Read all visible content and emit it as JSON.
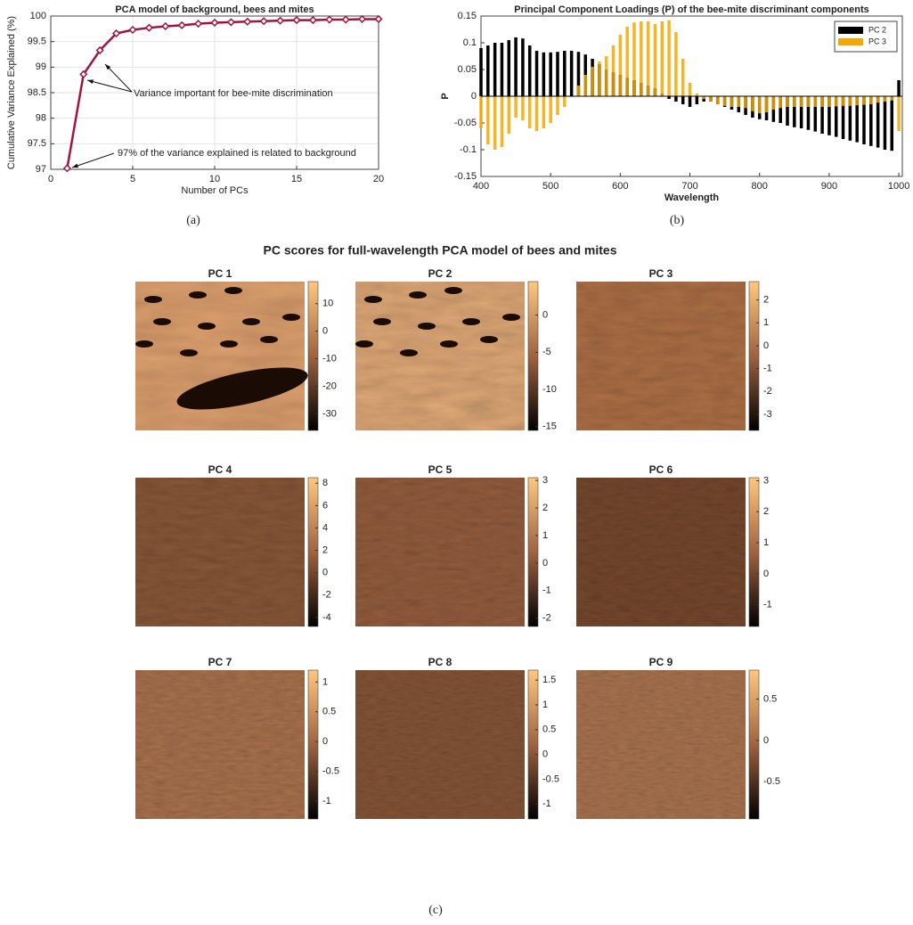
{
  "chart_data": [
    {
      "type": "line",
      "title": "PCA model of background, bees and mites",
      "x_label": "Number of PCs",
      "y_label": "Cumulative Variance Explained (%)",
      "x": [
        1,
        2,
        3,
        4,
        5,
        6,
        7,
        8,
        9,
        10,
        11,
        12,
        13,
        14,
        15,
        16,
        17,
        18,
        19,
        20
      ],
      "values": [
        97.02,
        98.86,
        99.33,
        99.66,
        99.73,
        99.77,
        99.8,
        99.82,
        99.85,
        99.87,
        99.88,
        99.89,
        99.9,
        99.91,
        99.92,
        99.92,
        99.93,
        99.93,
        99.94,
        99.94
      ],
      "color": "#a0153e",
      "xlim": [
        0,
        20
      ],
      "xticks": [
        0,
        5,
        10,
        15,
        20
      ],
      "ylim": [
        97,
        100
      ],
      "yticks": [
        97,
        97.5,
        98,
        98.5,
        99,
        99.5,
        100
      ],
      "grid": true,
      "annotations": [
        "Variance important for bee-mite discrimination",
        "97% of the variance explained is related to background"
      ]
    },
    {
      "type": "bar",
      "title": "Principal Component Loadings (P) of the bee-mite discriminant components",
      "x_label": "Wavelength",
      "y_label": "P",
      "x": [
        400,
        410,
        420,
        430,
        440,
        450,
        460,
        470,
        480,
        490,
        500,
        510,
        520,
        530,
        540,
        550,
        560,
        570,
        580,
        590,
        600,
        610,
        620,
        630,
        640,
        650,
        660,
        670,
        680,
        690,
        700,
        710,
        720,
        730,
        740,
        750,
        760,
        770,
        780,
        790,
        800,
        810,
        820,
        830,
        840,
        850,
        860,
        870,
        880,
        890,
        900,
        910,
        920,
        930,
        940,
        950,
        960,
        970,
        980,
        990,
        1000
      ],
      "series": [
        {
          "name": "PC 2",
          "color": "#000000",
          "values": [
            0.09,
            0.095,
            0.1,
            0.1,
            0.105,
            0.11,
            0.108,
            0.095,
            0.085,
            0.082,
            0.082,
            0.083,
            0.085,
            0.085,
            0.083,
            0.078,
            0.07,
            0.06,
            0.05,
            0.045,
            0.04,
            0.035,
            0.03,
            0.025,
            0.02,
            0.015,
            0.005,
            -0.005,
            -0.01,
            -0.015,
            -0.02,
            -0.015,
            -0.01,
            -0.01,
            -0.015,
            -0.02,
            -0.025,
            -0.03,
            -0.035,
            -0.04,
            -0.043,
            -0.045,
            -0.048,
            -0.05,
            -0.055,
            -0.058,
            -0.06,
            -0.063,
            -0.066,
            -0.07,
            -0.073,
            -0.076,
            -0.08,
            -0.083,
            -0.086,
            -0.09,
            -0.093,
            -0.096,
            -0.1,
            -0.102,
            0.03
          ]
        },
        {
          "name": "PC 3",
          "color": "#f5a800",
          "values": [
            -0.06,
            -0.09,
            -0.1,
            -0.095,
            -0.07,
            -0.04,
            -0.045,
            -0.06,
            -0.065,
            -0.06,
            -0.05,
            -0.035,
            -0.02,
            0,
            0.02,
            0.04,
            0.055,
            0.065,
            0.075,
            0.095,
            0.115,
            0.13,
            0.138,
            0.14,
            0.14,
            0.135,
            0.14,
            0.142,
            0.12,
            0.07,
            0.025,
            0.005,
            -0.005,
            -0.01,
            -0.015,
            -0.018,
            -0.02,
            -0.02,
            -0.022,
            -0.028,
            -0.032,
            -0.03,
            -0.025,
            -0.022,
            -0.02,
            -0.02,
            -0.02,
            -0.02,
            -0.02,
            -0.02,
            -0.02,
            -0.019,
            -0.018,
            -0.018,
            -0.017,
            -0.016,
            -0.015,
            -0.012,
            -0.01,
            -0.008,
            -0.065
          ]
        }
      ],
      "xlim": [
        400,
        1005
      ],
      "xticks": [
        400,
        500,
        600,
        700,
        800,
        900,
        1000
      ],
      "ylim": [
        -0.15,
        0.15
      ],
      "yticks": [
        -0.15,
        -0.1,
        -0.05,
        0,
        0.05,
        0.1,
        0.15
      ],
      "grid": false,
      "legend": "top-right"
    },
    {
      "type": "image",
      "title": "PC 1",
      "clim": [
        -36,
        18
      ],
      "cticks": [
        -30,
        -20,
        -10,
        0,
        10
      ]
    },
    {
      "type": "image",
      "title": "PC 2",
      "clim": [
        -15.5,
        4.5
      ],
      "cticks": [
        -15,
        -10,
        -5,
        0
      ]
    },
    {
      "type": "image",
      "title": "PC 3",
      "clim": [
        -3.7,
        2.8
      ],
      "cticks": [
        -3,
        -2,
        -1,
        0,
        1,
        2
      ]
    },
    {
      "type": "image",
      "title": "PC 4",
      "clim": [
        -4.8,
        8.5
      ],
      "cticks": [
        -4,
        -2,
        0,
        2,
        4,
        6,
        8
      ]
    },
    {
      "type": "image",
      "title": "PC 5",
      "clim": [
        -2.3,
        3.1
      ],
      "cticks": [
        -2,
        -1,
        0,
        1,
        2,
        3
      ]
    },
    {
      "type": "image",
      "title": "PC 6",
      "clim": [
        -1.7,
        3.1
      ],
      "cticks": [
        -1,
        0,
        1,
        2,
        3
      ]
    },
    {
      "type": "image",
      "title": "PC 7",
      "clim": [
        -1.3,
        1.2
      ],
      "cticks": [
        -1,
        -0.5,
        0,
        0.5,
        1
      ]
    },
    {
      "type": "image",
      "title": "PC 8",
      "clim": [
        -1.3,
        1.7
      ],
      "cticks": [
        -1,
        -0.5,
        0,
        0.5,
        1,
        1.5
      ]
    },
    {
      "type": "image",
      "title": "PC 9",
      "clim": [
        -0.95,
        0.85
      ],
      "cticks": [
        -0.5,
        0,
        0.5
      ]
    }
  ],
  "figure_c_title": "PC scores for full-wavelength PCA model of bees and mites",
  "captions": [
    "(a)",
    "(b)",
    "(c)"
  ]
}
